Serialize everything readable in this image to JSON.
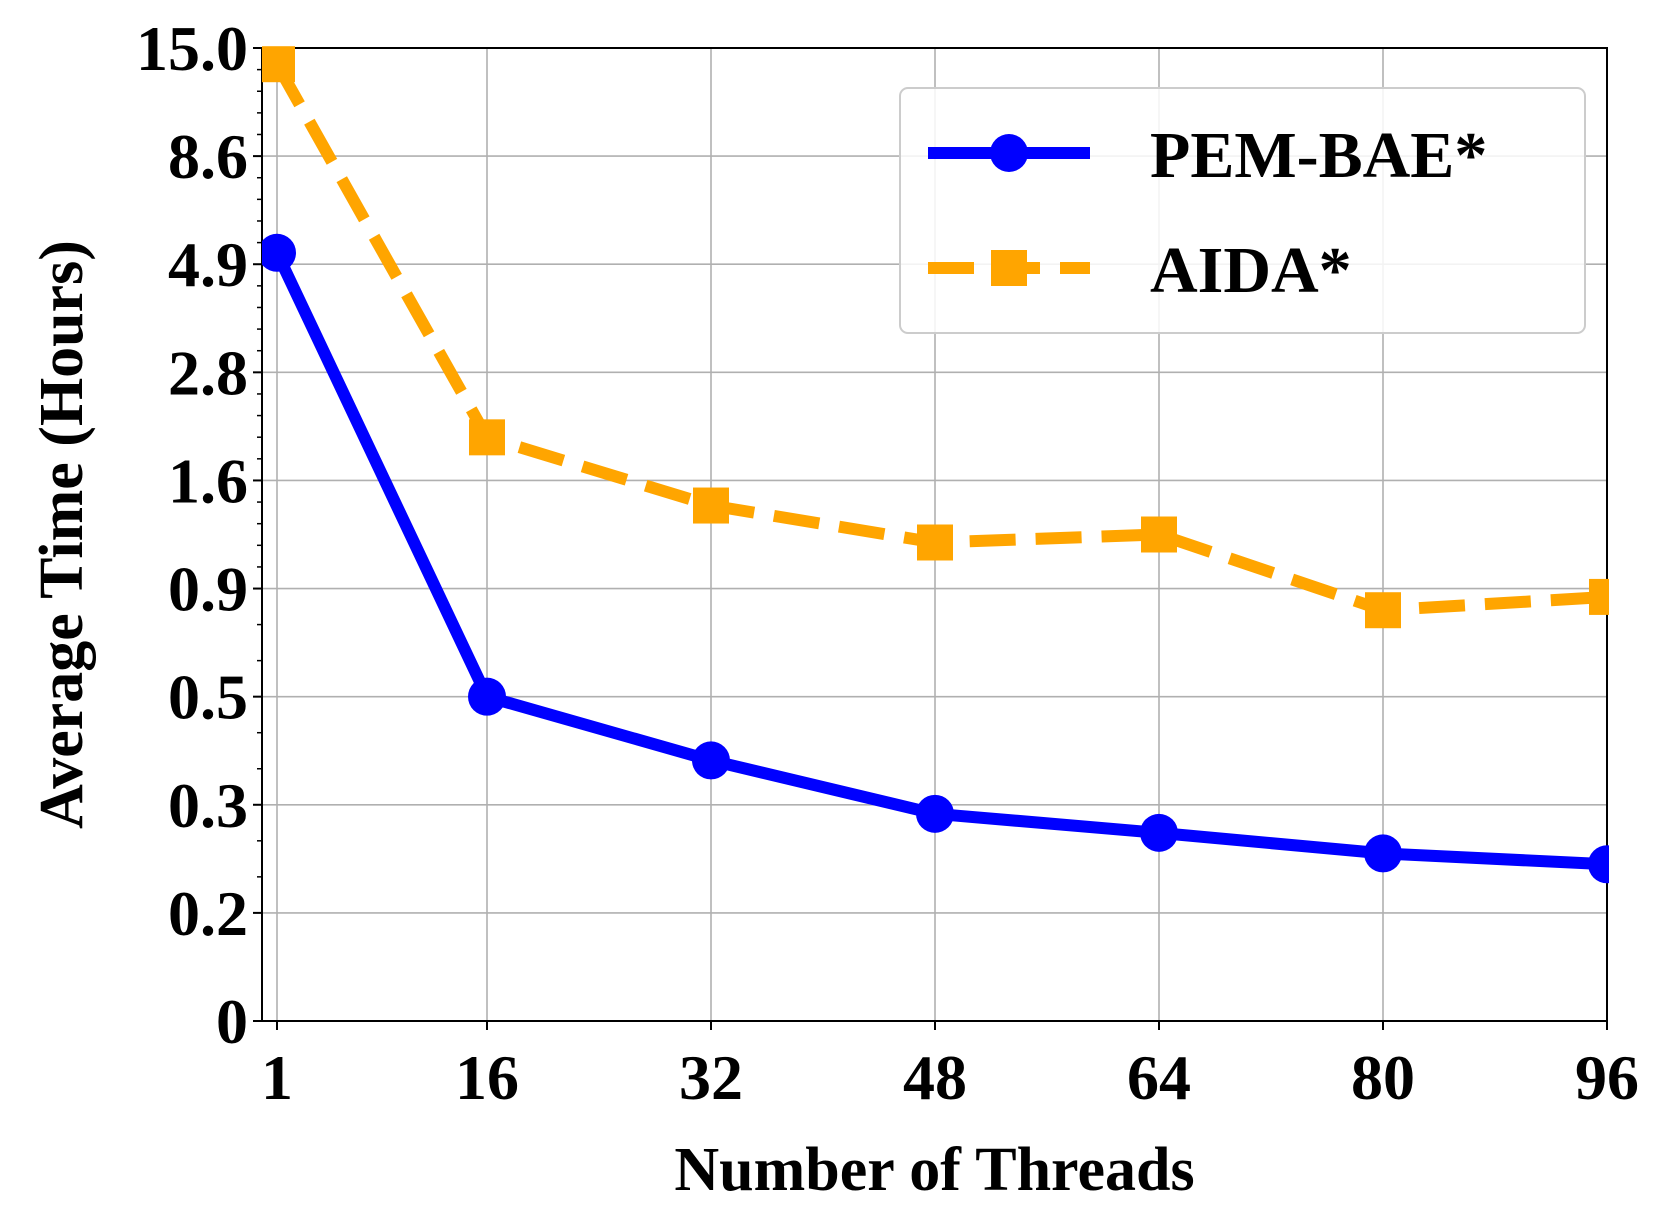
{
  "chart_data": {
    "type": "line",
    "title": "",
    "xlabel": "Number of Threads",
    "ylabel": "Average Time (Hours)",
    "x_ticks": [
      "1",
      "16",
      "32",
      "48",
      "64",
      "80",
      "96"
    ],
    "y_ticks": [
      "0",
      "0.2",
      "0.3",
      "0.5",
      "0.9",
      "1.6",
      "2.8",
      "4.9",
      "8.6",
      "15.0"
    ],
    "y_scale": "categorical-log-like (tick labels evenly spaced)",
    "grid": true,
    "legend_position": "top-right",
    "series": [
      {
        "name": "PEM-BAE*",
        "color": "#0000ff",
        "line_style": "solid",
        "marker": "circle",
        "x": [
          1,
          16,
          32,
          48,
          64,
          80,
          96
        ],
        "y": [
          5.2,
          0.5,
          0.37,
          0.29,
          0.27,
          0.25,
          0.24
        ]
      },
      {
        "name": "AIDA*",
        "color": "#ffa500",
        "line_style": "dashed",
        "marker": "square",
        "x": [
          1,
          16,
          32,
          48,
          64,
          80,
          96
        ],
        "y": [
          13.8,
          2.0,
          1.4,
          1.15,
          1.2,
          0.8,
          0.86
        ]
      }
    ]
  }
}
